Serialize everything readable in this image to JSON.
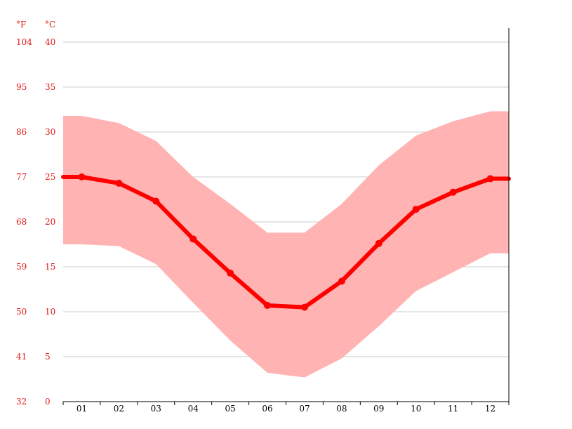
{
  "chart_data": {
    "type": "area",
    "title": "",
    "units": {
      "fahrenheit": "°F",
      "celsius": "°C"
    },
    "categories": [
      "01",
      "02",
      "03",
      "04",
      "05",
      "06",
      "07",
      "08",
      "09",
      "10",
      "11",
      "12"
    ],
    "y_ticks_celsius": [
      "0",
      "5",
      "10",
      "15",
      "20",
      "25",
      "30",
      "35",
      "40"
    ],
    "y_ticks_fahrenheit": [
      "32",
      "41",
      "50",
      "59",
      "68",
      "77",
      "86",
      "95",
      "104"
    ],
    "ylim": [
      0,
      40
    ],
    "grid": true,
    "series": [
      {
        "values": [
          25.0,
          24.3,
          22.3,
          18.1,
          14.3,
          10.7,
          10.5,
          13.4,
          17.6,
          21.4,
          23.3,
          24.8
        ]
      },
      {
        "values": [
          31.8,
          31.0,
          29.0,
          25.0,
          22.0,
          18.8,
          18.8,
          22.0,
          26.3,
          29.6,
          31.2,
          32.3
        ]
      },
      {
        "values": [
          17.5,
          17.3,
          15.3,
          11.0,
          6.8,
          3.2,
          2.7,
          4.8,
          8.4,
          12.3,
          14.4,
          16.5
        ]
      }
    ],
    "colors": {
      "line": "#ff0000",
      "band": "#ffb3b3",
      "grid": "#cccccc",
      "axis": "#000000",
      "tick_text": "#e01818"
    }
  }
}
